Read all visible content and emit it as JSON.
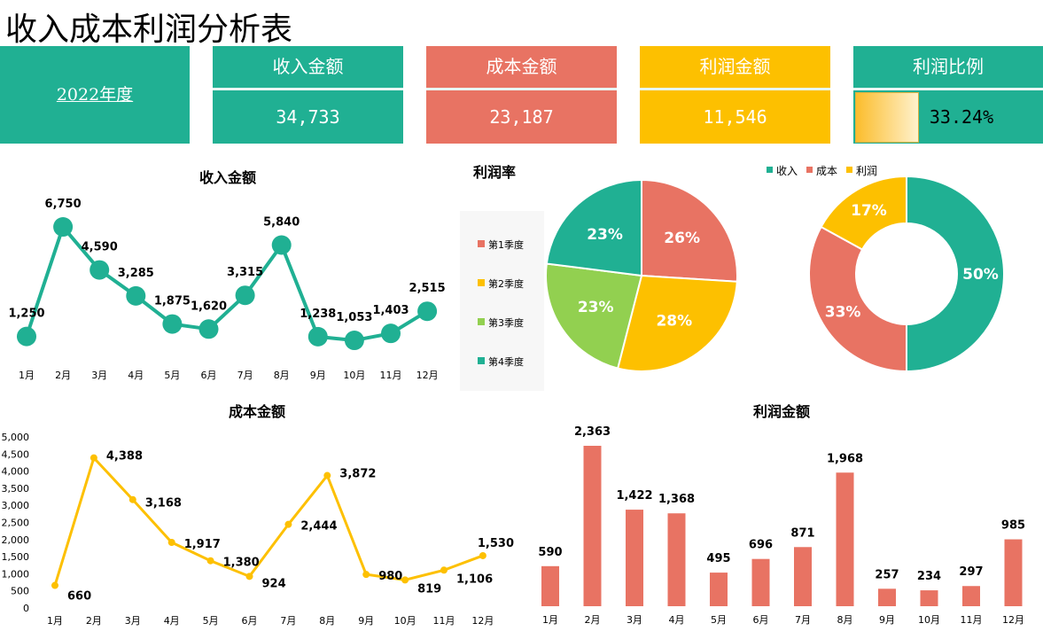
{
  "title": "收入成本利润分析表",
  "year": "2022年度",
  "cards": [
    {
      "label": "收入金额",
      "value": "34,733",
      "color": "#20b093"
    },
    {
      "label": "成本金额",
      "value": "23,187",
      "color": "#e87363"
    },
    {
      "label": "利润金额",
      "value": "11,546",
      "color": "#fdc000"
    },
    {
      "label": "利润比例",
      "value": "33.24%",
      "color": "#20b093",
      "fill": 0.3324
    }
  ],
  "chart_data": [
    {
      "type": "line",
      "title": "收入金额",
      "categories": [
        "1月",
        "2月",
        "3月",
        "4月",
        "5月",
        "6月",
        "7月",
        "8月",
        "9月",
        "10月",
        "11月",
        "12月"
      ],
      "values": [
        1250,
        6750,
        4590,
        3285,
        1875,
        1620,
        3315,
        5840,
        1238,
        1053,
        1403,
        2515
      ],
      "labels": [
        "1,250",
        "6,750",
        "4,590",
        "3,285",
        "1,875",
        "1,620",
        "3,315",
        "5,840",
        "1,238",
        "1,053",
        "1,403",
        "2,515"
      ],
      "color": "#20b093"
    },
    {
      "type": "pie",
      "title": "利润率",
      "categories": [
        "第1季度",
        "第2季度",
        "第3季度",
        "第4季度"
      ],
      "values": [
        26,
        28,
        23,
        23
      ],
      "labels": [
        "26%",
        "28%",
        "23%",
        "23%"
      ],
      "colors": [
        "#e87363",
        "#fdc000",
        "#92d050",
        "#20b093"
      ],
      "legend": "left"
    },
    {
      "type": "pie",
      "subtype": "donut",
      "categories": [
        "收入",
        "成本",
        "利润"
      ],
      "values": [
        50,
        33,
        17
      ],
      "labels": [
        "50%",
        "33%",
        "17%"
      ],
      "colors": [
        "#20b093",
        "#e87363",
        "#fdc000"
      ],
      "legend": "top"
    },
    {
      "type": "line",
      "title": "成本金额",
      "categories": [
        "1月",
        "2月",
        "3月",
        "4月",
        "5月",
        "6月",
        "7月",
        "8月",
        "9月",
        "10月",
        "11月",
        "12月"
      ],
      "values": [
        660,
        4388,
        3168,
        1917,
        1380,
        924,
        2444,
        3872,
        980,
        819,
        1106,
        1530
      ],
      "labels": [
        "660",
        "4,388",
        "3,168",
        "1,917",
        "1,380",
        "924",
        "2,444",
        "3,872",
        "980",
        "819",
        "1,106",
        "1,530"
      ],
      "ylim": [
        0,
        5000
      ],
      "yticks": [
        "0",
        "500",
        "1,000",
        "1,500",
        "2,000",
        "2,500",
        "3,000",
        "3,500",
        "4,000",
        "4,500",
        "5,000"
      ],
      "color": "#fdc000"
    },
    {
      "type": "bar",
      "title": "利润金额",
      "categories": [
        "1月",
        "2月",
        "3月",
        "4月",
        "5月",
        "6月",
        "7月",
        "8月",
        "9月",
        "10月",
        "11月",
        "12月"
      ],
      "values": [
        590,
        2363,
        1422,
        1368,
        495,
        696,
        871,
        1968,
        257,
        234,
        297,
        985
      ],
      "labels": [
        "590",
        "2,363",
        "1,422",
        "1,368",
        "495",
        "696",
        "871",
        "1,968",
        "257",
        "234",
        "297",
        "985"
      ],
      "color": "#e87363"
    }
  ]
}
